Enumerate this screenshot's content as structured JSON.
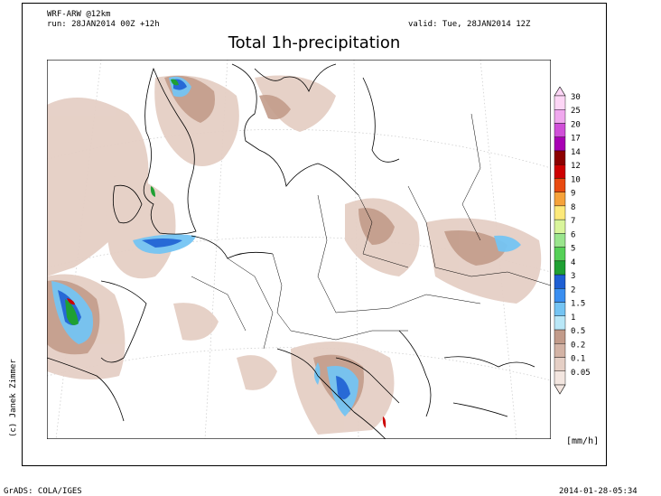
{
  "header": {
    "model": "WRF-ARW @12km",
    "run": "run: 28JAN2014 00Z +12h",
    "valid": "valid: Tue, 28JAN2014 12Z",
    "title": "Total 1h-precipitation"
  },
  "colorbar": {
    "unit": "[mm/h]",
    "levels": [
      "30",
      "25",
      "20",
      "17",
      "14",
      "12",
      "10",
      "9",
      "8",
      "7",
      "6",
      "5",
      "4",
      "3",
      "2",
      "1.5",
      "1",
      "0.5",
      "0.2",
      "0.1",
      "0.05"
    ],
    "colors": [
      "#fdd6f6",
      "#f0a8ee",
      "#d04fd8",
      "#a800b4",
      "#8c0000",
      "#cd0000",
      "#e84a10",
      "#f6a23a",
      "#fde97a",
      "#d9f59b",
      "#9ae58d",
      "#55d057",
      "#1fa033",
      "#1e5fd3",
      "#3a8ef0",
      "#74c4f3",
      "#b9e7f7",
      "#c29b8a",
      "#d3b3a5",
      "#e5cfc5",
      "#f3e6e0"
    ]
  },
  "credit": "(c) Janek Zimmer",
  "footer": {
    "left": "GrADS: COLA/IGES",
    "right": "2014-01-28-05:34"
  }
}
